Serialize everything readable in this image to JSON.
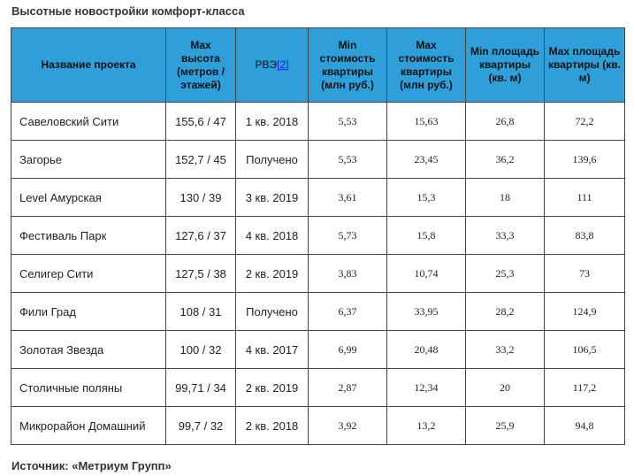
{
  "caption": "Высотные новостройки комфорт-класса",
  "table": {
    "headers": {
      "name": "Название проекта",
      "height": "Max высота (метров / этажей)",
      "rve": "РВЭ",
      "rve_ref": "[2]",
      "min_cost": "Min стоимость квартиры (млн руб.)",
      "max_cost": "Max стоимость квартиры (млн руб.)",
      "min_area": "Min площадь квартиры (кв. м)",
      "max_area": "Max площадь квартиры (кв. м)"
    },
    "rows": [
      {
        "name": "Савеловский Сити",
        "height": "155,6 / 47",
        "rve": "1 кв. 2018",
        "min_cost": "5,53",
        "max_cost": "15,63",
        "min_area": "26,8",
        "max_area": "72,2"
      },
      {
        "name": "Загорье",
        "height": "152,7 / 45",
        "rve": "Получено",
        "min_cost": "5,53",
        "max_cost": "23,45",
        "min_area": "36,2",
        "max_area": "139,6"
      },
      {
        "name": "Level Амурская",
        "height": "130 / 39",
        "rve": "3 кв. 2019",
        "min_cost": "3,61",
        "max_cost": "15,3",
        "min_area": "18",
        "max_area": "111"
      },
      {
        "name": "Фестиваль Парк",
        "height": "127,6 / 37",
        "rve": "4 кв. 2018",
        "min_cost": "5,73",
        "max_cost": "15,8",
        "min_area": "33,3",
        "max_area": "83,8"
      },
      {
        "name": "Селигер Сити",
        "height": "127,5 / 38",
        "rve": "2 кв. 2019",
        "min_cost": "3,83",
        "max_cost": "10,74",
        "min_area": "25,3",
        "max_area": "73"
      },
      {
        "name": "Фили Град",
        "height": "108 / 31",
        "rve": "Получено",
        "min_cost": "6,37",
        "max_cost": "33,95",
        "min_area": "28,2",
        "max_area": "124,9"
      },
      {
        "name": "Золотая Звезда",
        "height": "100 / 32",
        "rve": "4 кв. 2017",
        "min_cost": "6,99",
        "max_cost": "20,48",
        "min_area": "33,2",
        "max_area": "106,5"
      },
      {
        "name": "Столичные поляны",
        "height": "99,71 / 34",
        "rve": "2 кв. 2019",
        "min_cost": "2,87",
        "max_cost": "12,34",
        "min_area": "20",
        "max_area": "117,2"
      },
      {
        "name": "Микрорайон Домашний",
        "height": "99,7 / 32",
        "rve": "2 кв. 2018",
        "min_cost": "3,92",
        "max_cost": "13,2",
        "min_area": "25,9",
        "max_area": "94,8"
      }
    ]
  },
  "source": "Источник: «Метриум Групп»",
  "colors": {
    "header_bg": "#2f9fda",
    "border": "#444444",
    "link": "#1a1aee"
  }
}
